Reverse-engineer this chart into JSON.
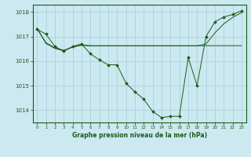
{
  "title": "Graphe pression niveau de la mer (hPa)",
  "bg_color": "#cce8f0",
  "grid_color": "#a8cdd8",
  "line_color": "#1a5c1a",
  "ylim": [
    1013.5,
    1018.3
  ],
  "xlim": [
    -0.5,
    23.5
  ],
  "yticks": [
    1014,
    1015,
    1016,
    1017,
    1018
  ],
  "xticks": [
    0,
    1,
    2,
    3,
    4,
    5,
    6,
    7,
    8,
    9,
    10,
    11,
    12,
    13,
    14,
    15,
    16,
    17,
    18,
    19,
    20,
    21,
    22,
    23
  ],
  "series1_x": [
    0,
    1,
    2,
    3,
    4,
    5,
    6,
    7,
    8,
    9,
    10,
    11,
    12,
    13,
    14,
    15,
    16,
    17,
    18,
    19,
    20,
    21,
    22,
    23
  ],
  "series1_y": [
    1017.3,
    1017.1,
    1016.6,
    1016.4,
    1016.6,
    1016.7,
    1016.3,
    1016.05,
    1015.85,
    1015.85,
    1015.1,
    1014.75,
    1014.45,
    1013.95,
    1013.7,
    1013.75,
    1013.75,
    1016.15,
    1015.0,
    1017.0,
    1017.6,
    1017.8,
    1017.9,
    1018.05
  ],
  "series2_x": [
    0,
    1,
    2,
    3,
    4,
    5,
    6,
    7,
    8,
    9,
    10,
    11,
    12,
    13,
    14,
    15,
    16,
    17,
    18,
    19,
    20,
    21,
    22,
    23
  ],
  "series2_y": [
    1017.35,
    1016.72,
    1016.52,
    1016.42,
    1016.58,
    1016.65,
    1016.62,
    1016.62,
    1016.62,
    1016.62,
    1016.62,
    1016.62,
    1016.62,
    1016.62,
    1016.62,
    1016.62,
    1016.62,
    1016.62,
    1016.62,
    1016.7,
    1017.15,
    1017.52,
    1017.78,
    1017.98
  ],
  "series3_x": [
    0,
    1,
    2,
    3,
    4,
    5,
    6,
    7,
    8,
    9,
    10,
    11,
    12,
    13,
    14,
    15,
    16,
    17,
    18,
    19,
    20,
    21,
    22,
    23
  ],
  "series3_y": [
    1017.32,
    1016.75,
    1016.54,
    1016.44,
    1016.57,
    1016.66,
    1016.63,
    1016.63,
    1016.63,
    1016.63,
    1016.63,
    1016.63,
    1016.63,
    1016.63,
    1016.63,
    1016.63,
    1016.63,
    1016.63,
    1016.63,
    1016.63,
    1016.63,
    1016.63,
    1016.63,
    1016.63
  ]
}
